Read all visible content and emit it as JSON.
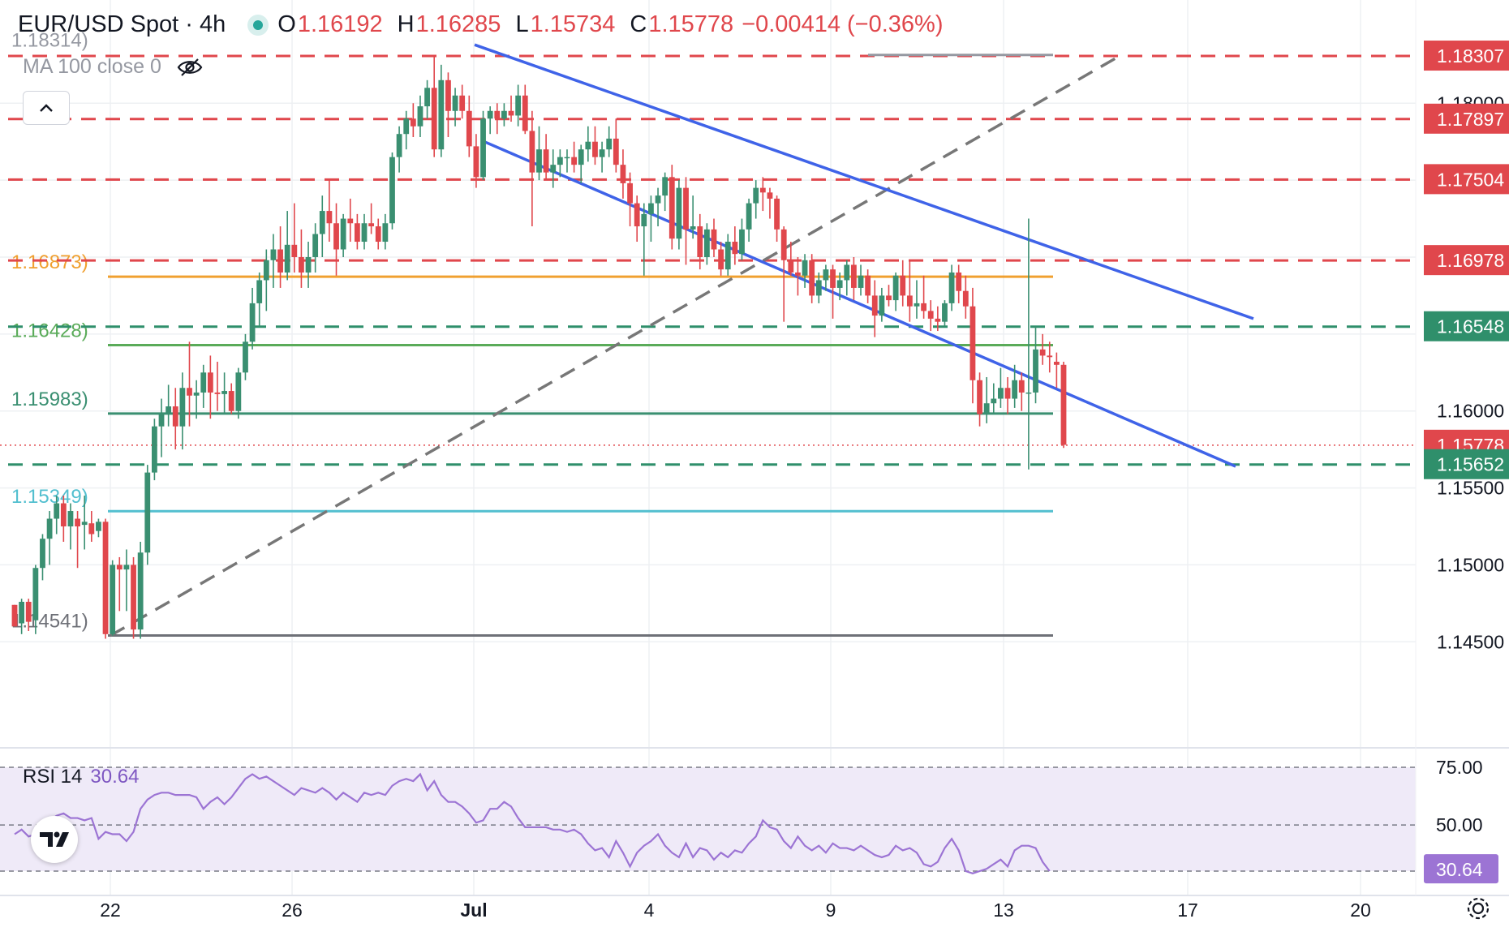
{
  "header": {
    "symbol": "EUR/USD Spot · 4h",
    "open_key": "O",
    "open": "1.16192",
    "high_key": "H",
    "high": "1.16285",
    "low_key": "L",
    "low": "1.15734",
    "close_key": "C",
    "close": "1.15778",
    "change": "−0.00414 (−0.36%)",
    "indicator": "MA 100 close 0",
    "hidden_icon": "eye-crossed-icon",
    "collapse_icon": "chevron-up-icon"
  },
  "rsi": {
    "label": "RSI 14",
    "value": "30.64",
    "levels": [
      "75.00",
      "50.00"
    ],
    "badge": "30.64"
  },
  "colors": {
    "up": "#26a69a",
    "up_body": "#3a8f71",
    "down": "#e0474c",
    "channel": "#3f63e8",
    "red_level": "#e0474c",
    "green_level": "#2f8f6b",
    "orange_fib": "#f0a030",
    "green_fib": "#5aab59",
    "teal_fib": "#3a8f71",
    "cyan_fib": "#52bfcf",
    "gray_fib": "#6e7077",
    "rsi_line": "#9c74d4",
    "rsi_band": "#efeaf8",
    "trend_dash": "#777777"
  },
  "chart_data": {
    "type": "candlestick",
    "ylim": [
      1.1418,
      1.1846
    ],
    "x_ticks": [
      "22",
      "26",
      "Jul",
      "4",
      "9",
      "13",
      "17",
      "20"
    ],
    "y_ticks": [
      "1.18000",
      "1.16000",
      "1.15500",
      "1.15000",
      "1.14500"
    ],
    "level_badges": [
      {
        "label": "1.18307",
        "value": 1.18307,
        "kind": "red"
      },
      {
        "label": "1.17897",
        "value": 1.17897,
        "kind": "red"
      },
      {
        "label": "1.17504",
        "value": 1.17504,
        "kind": "red"
      },
      {
        "label": "1.16978",
        "value": 1.16978,
        "kind": "red"
      },
      {
        "label": "1.16548",
        "value": 1.16548,
        "kind": "green"
      },
      {
        "label": "1.15778",
        "value": 1.15778,
        "kind": "price"
      },
      {
        "label": "1.15652",
        "value": 1.15652,
        "kind": "green"
      }
    ],
    "fib_levels": [
      {
        "label": "1.18314)",
        "value": 1.18314,
        "color": "#9598a1"
      },
      {
        "label": "1.16873)",
        "value": 1.16873,
        "color": "#f0a030"
      },
      {
        "label": "1.16428)",
        "value": 1.16428,
        "color": "#5aab59"
      },
      {
        "label": "1.15983)",
        "value": 1.15983,
        "color": "#3a8f71"
      },
      {
        "label": "1.15349)",
        "value": 1.15349,
        "color": "#52bfcf"
      },
      {
        "label": "1.14541)",
        "value": 1.14541,
        "color": "#6e7077"
      }
    ],
    "channel_upper": [
      [
        1.1838,
        0
      ],
      [
        1.166,
        185
      ]
    ],
    "channel_lower": [
      [
        1.1775,
        0
      ],
      [
        1.1564,
        185
      ]
    ],
    "trend_line": [
      [
        1.1454,
        0
      ],
      [
        1.1831,
        208
      ]
    ],
    "candles": [
      [
        1.1474,
        1.1474,
        1.146,
        1.146
      ],
      [
        1.1462,
        1.1478,
        1.1455,
        1.1476
      ],
      [
        1.1476,
        1.1478,
        1.1457,
        1.1463
      ],
      [
        1.1464,
        1.15,
        1.1455,
        1.1498
      ],
      [
        1.1498,
        1.152,
        1.149,
        1.1517
      ],
      [
        1.1517,
        1.1535,
        1.15,
        1.153
      ],
      [
        1.153,
        1.1545,
        1.152,
        1.154
      ],
      [
        1.154,
        1.1545,
        1.1515,
        1.1525
      ],
      [
        1.1525,
        1.154,
        1.151,
        1.1535
      ],
      [
        1.153,
        1.1535,
        1.1498,
        1.1525
      ],
      [
        1.1526,
        1.1545,
        1.151,
        1.1528
      ],
      [
        1.1527,
        1.1535,
        1.1515,
        1.152
      ],
      [
        1.1522,
        1.153,
        1.1518,
        1.1528
      ],
      [
        1.1528,
        1.153,
        1.1452,
        1.1455
      ],
      [
        1.1455,
        1.1503,
        1.1454,
        1.15
      ],
      [
        1.15,
        1.1505,
        1.147,
        1.1497
      ],
      [
        1.1497,
        1.151,
        1.147,
        1.15
      ],
      [
        1.15,
        1.1505,
        1.1452,
        1.1458
      ],
      [
        1.1458,
        1.1515,
        1.1452,
        1.1508
      ],
      [
        1.1508,
        1.1565,
        1.15,
        1.156
      ],
      [
        1.156,
        1.1595,
        1.1555,
        1.159
      ],
      [
        1.159,
        1.1608,
        1.157,
        1.1598
      ],
      [
        1.1598,
        1.1617,
        1.159,
        1.1603
      ],
      [
        1.1603,
        1.1615,
        1.1575,
        1.159
      ],
      [
        1.159,
        1.1625,
        1.1575,
        1.1615
      ],
      [
        1.1615,
        1.1645,
        1.159,
        1.161
      ],
      [
        1.161,
        1.162,
        1.1595,
        1.1612
      ],
      [
        1.1612,
        1.163,
        1.1602,
        1.1625
      ],
      [
        1.1625,
        1.1636,
        1.1595,
        1.1612
      ],
      [
        1.1612,
        1.1632,
        1.16,
        1.1611
      ],
      [
        1.1611,
        1.1625,
        1.1598,
        1.1613
      ],
      [
        1.1613,
        1.1618,
        1.1598,
        1.16
      ],
      [
        1.16,
        1.1628,
        1.1595,
        1.1625
      ],
      [
        1.1625,
        1.165,
        1.162,
        1.1645
      ],
      [
        1.1645,
        1.168,
        1.164,
        1.167
      ],
      [
        1.167,
        1.169,
        1.1655,
        1.1685
      ],
      [
        1.1685,
        1.1705,
        1.1665,
        1.1698
      ],
      [
        1.1698,
        1.1715,
        1.168,
        1.1705
      ],
      [
        1.1705,
        1.172,
        1.168,
        1.169
      ],
      [
        1.169,
        1.173,
        1.1685,
        1.1708
      ],
      [
        1.1708,
        1.1735,
        1.169,
        1.17
      ],
      [
        1.17,
        1.1718,
        1.168,
        1.169
      ],
      [
        1.169,
        1.171,
        1.168,
        1.17
      ],
      [
        1.17,
        1.1722,
        1.169,
        1.1715
      ],
      [
        1.1715,
        1.174,
        1.17,
        1.173
      ],
      [
        1.173,
        1.175,
        1.171,
        1.1722
      ],
      [
        1.1722,
        1.1735,
        1.1688,
        1.1705
      ],
      [
        1.1705,
        1.1728,
        1.17,
        1.1725
      ],
      [
        1.1725,
        1.1738,
        1.171,
        1.1722
      ],
      [
        1.1722,
        1.1728,
        1.1705,
        1.171
      ],
      [
        1.171,
        1.1728,
        1.1705,
        1.1722
      ],
      [
        1.1722,
        1.1735,
        1.1715,
        1.172
      ],
      [
        1.172,
        1.1725,
        1.1705,
        1.171
      ],
      [
        1.171,
        1.1728,
        1.1705,
        1.1722
      ],
      [
        1.1722,
        1.1768,
        1.1718,
        1.1765
      ],
      [
        1.1765,
        1.1785,
        1.1755,
        1.178
      ],
      [
        1.178,
        1.1795,
        1.177,
        1.179
      ],
      [
        1.179,
        1.18,
        1.1778,
        1.1785
      ],
      [
        1.1785,
        1.1805,
        1.1778,
        1.1798
      ],
      [
        1.1798,
        1.1815,
        1.179,
        1.181
      ],
      [
        1.181,
        1.183,
        1.1765,
        1.177
      ],
      [
        1.177,
        1.1825,
        1.1765,
        1.1815
      ],
      [
        1.1815,
        1.182,
        1.1778,
        1.1795
      ],
      [
        1.1795,
        1.181,
        1.1785,
        1.1805
      ],
      [
        1.1805,
        1.1812,
        1.179,
        1.1795
      ],
      [
        1.1795,
        1.1805,
        1.1765,
        1.1772
      ],
      [
        1.1772,
        1.178,
        1.1745,
        1.1752
      ],
      [
        1.1752,
        1.1795,
        1.175,
        1.179
      ],
      [
        1.179,
        1.1798,
        1.178,
        1.1795
      ],
      [
        1.1795,
        1.18,
        1.178,
        1.179
      ],
      [
        1.179,
        1.18,
        1.1785,
        1.1795
      ],
      [
        1.1795,
        1.1805,
        1.1788,
        1.1792
      ],
      [
        1.1792,
        1.1812,
        1.1785,
        1.1805
      ],
      [
        1.1805,
        1.1812,
        1.178,
        1.1782
      ],
      [
        1.1782,
        1.1795,
        1.172,
        1.1755
      ],
      [
        1.1755,
        1.1785,
        1.175,
        1.177
      ],
      [
        1.177,
        1.178,
        1.175,
        1.1755
      ],
      [
        1.1755,
        1.177,
        1.1745,
        1.176
      ],
      [
        1.176,
        1.177,
        1.1752,
        1.1765
      ],
      [
        1.1765,
        1.177,
        1.1755,
        1.1765
      ],
      [
        1.1765,
        1.1775,
        1.1755,
        1.176
      ],
      [
        1.176,
        1.1773,
        1.1748,
        1.177
      ],
      [
        1.177,
        1.1785,
        1.1762,
        1.1775
      ],
      [
        1.1775,
        1.1785,
        1.176,
        1.1765
      ],
      [
        1.1765,
        1.1775,
        1.1755,
        1.177
      ],
      [
        1.177,
        1.1785,
        1.1765,
        1.1777
      ],
      [
        1.1777,
        1.179,
        1.1755,
        1.176
      ],
      [
        1.176,
        1.177,
        1.1738,
        1.1748
      ],
      [
        1.1748,
        1.1755,
        1.172,
        1.1735
      ],
      [
        1.1735,
        1.174,
        1.171,
        1.172
      ],
      [
        1.172,
        1.1735,
        1.1688,
        1.1728
      ],
      [
        1.1728,
        1.174,
        1.171,
        1.1735
      ],
      [
        1.1735,
        1.1745,
        1.172,
        1.174
      ],
      [
        1.174,
        1.1755,
        1.173,
        1.1752
      ],
      [
        1.1752,
        1.176,
        1.1705,
        1.1712
      ],
      [
        1.1712,
        1.175,
        1.1705,
        1.1745
      ],
      [
        1.1745,
        1.1752,
        1.1695,
        1.1718
      ],
      [
        1.1718,
        1.174,
        1.1712,
        1.172
      ],
      [
        1.172,
        1.1728,
        1.1692,
        1.17
      ],
      [
        1.17,
        1.1722,
        1.1695,
        1.1718
      ],
      [
        1.1718,
        1.1725,
        1.17,
        1.1705
      ],
      [
        1.1705,
        1.171,
        1.1688,
        1.1692
      ],
      [
        1.1692,
        1.1715,
        1.1688,
        1.171
      ],
      [
        1.171,
        1.172,
        1.1695,
        1.1702
      ],
      [
        1.1702,
        1.1725,
        1.1698,
        1.1718
      ],
      [
        1.1718,
        1.1738,
        1.171,
        1.1735
      ],
      [
        1.1735,
        1.175,
        1.1725,
        1.1745
      ],
      [
        1.1745,
        1.1752,
        1.173,
        1.1742
      ],
      [
        1.1742,
        1.1745,
        1.1725,
        1.1738
      ],
      [
        1.1738,
        1.174,
        1.171,
        1.1718
      ],
      [
        1.1718,
        1.172,
        1.1658,
        1.1698
      ],
      [
        1.1698,
        1.171,
        1.1688,
        1.169
      ],
      [
        1.169,
        1.17,
        1.1675,
        1.1688
      ],
      [
        1.1688,
        1.1702,
        1.168,
        1.1698
      ],
      [
        1.1698,
        1.1702,
        1.167,
        1.1675
      ],
      [
        1.1675,
        1.169,
        1.167,
        1.1685
      ],
      [
        1.1685,
        1.1695,
        1.1678,
        1.1692
      ],
      [
        1.1692,
        1.1695,
        1.166,
        1.168
      ],
      [
        1.168,
        1.169,
        1.1672,
        1.1685
      ],
      [
        1.1685,
        1.1698,
        1.1675,
        1.1695
      ],
      [
        1.1695,
        1.17,
        1.1672,
        1.168
      ],
      [
        1.168,
        1.1695,
        1.1675,
        1.1688
      ],
      [
        1.1688,
        1.1692,
        1.167,
        1.1675
      ],
      [
        1.1675,
        1.1685,
        1.1648,
        1.1662
      ],
      [
        1.1662,
        1.168,
        1.1658,
        1.1675
      ],
      [
        1.1675,
        1.1682,
        1.1668,
        1.1672
      ],
      [
        1.1672,
        1.169,
        1.1665,
        1.1688
      ],
      [
        1.1688,
        1.1698,
        1.1668,
        1.1675
      ],
      [
        1.1675,
        1.1698,
        1.1658,
        1.1668
      ],
      [
        1.1668,
        1.1685,
        1.166,
        1.167
      ],
      [
        1.167,
        1.1688,
        1.166,
        1.1665
      ],
      [
        1.1665,
        1.1672,
        1.1652,
        1.166
      ],
      [
        1.166,
        1.1668,
        1.1652,
        1.1658
      ],
      [
        1.1658,
        1.1672,
        1.1655,
        1.167
      ],
      [
        1.167,
        1.1695,
        1.1665,
        1.169
      ],
      [
        1.169,
        1.1695,
        1.167,
        1.1678
      ],
      [
        1.1678,
        1.1688,
        1.166,
        1.1668
      ],
      [
        1.1668,
        1.168,
        1.1605,
        1.162
      ],
      [
        1.162,
        1.1625,
        1.159,
        1.1598
      ],
      [
        1.1598,
        1.1622,
        1.1592,
        1.1605
      ],
      [
        1.1605,
        1.1618,
        1.1598,
        1.1608
      ],
      [
        1.1608,
        1.1628,
        1.1602,
        1.1615
      ],
      [
        1.1615,
        1.1622,
        1.1598,
        1.1608
      ],
      [
        1.1608,
        1.163,
        1.1602,
        1.162
      ],
      [
        1.162,
        1.1625,
        1.16,
        1.1612
      ],
      [
        1.1612,
        1.1725,
        1.1562,
        1.1612
      ],
      [
        1.1612,
        1.1655,
        1.1605,
        1.164
      ],
      [
        1.164,
        1.165,
        1.163,
        1.1636
      ],
      [
        1.1636,
        1.1645,
        1.1625,
        1.1635
      ],
      [
        1.1632,
        1.1638,
        1.1615,
        1.163
      ],
      [
        1.163,
        1.1632,
        1.1576,
        1.1578
      ]
    ],
    "rsi_series": [
      46,
      48,
      45,
      46,
      49,
      52,
      54,
      55,
      53,
      53,
      52,
      53,
      44,
      47,
      46,
      46,
      43,
      47,
      57,
      61,
      63,
      64,
      64,
      63,
      63,
      63,
      62,
      57,
      60,
      62,
      59,
      62,
      66,
      70,
      72,
      70,
      71,
      69,
      67,
      65,
      63,
      66,
      65,
      64,
      66,
      64,
      61,
      64,
      62,
      60,
      64,
      63,
      64,
      63,
      67,
      69,
      70,
      69,
      72,
      65,
      69,
      63,
      60,
      60,
      58,
      55,
      51,
      52,
      57,
      57,
      60,
      58,
      53,
      49,
      49,
      49,
      49,
      48,
      48,
      47,
      48,
      46,
      42,
      39,
      40,
      36,
      43,
      38,
      32,
      38,
      41,
      43,
      46,
      41,
      38,
      36,
      42,
      36,
      40,
      39,
      35,
      38,
      36,
      39,
      38,
      42,
      45,
      52,
      49,
      48,
      43,
      40,
      45,
      41,
      39,
      41,
      38,
      42,
      40,
      40,
      39,
      41,
      39,
      37,
      36,
      37,
      41,
      39,
      40,
      38,
      33,
      32,
      34,
      40,
      44,
      39,
      30,
      29,
      30,
      31,
      33,
      35,
      32,
      39,
      41,
      41,
      40,
      34,
      30
    ]
  }
}
